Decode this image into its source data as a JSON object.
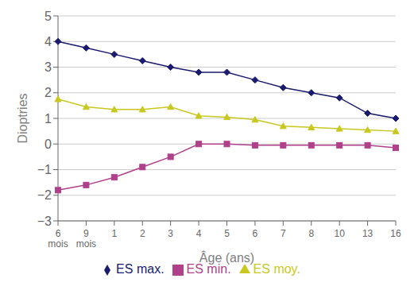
{
  "chart_data": {
    "type": "line",
    "x_label": "Âge (ans)",
    "y_label": "Dioptries",
    "categories": [
      "6\nmois",
      "9\nmois",
      "1",
      "2",
      "3",
      "4",
      "5",
      "6",
      "7",
      "8",
      "10",
      "13",
      "16"
    ],
    "series": [
      {
        "name": "ES max.",
        "color": "#1a1a6e",
        "marker": "diamond",
        "values": [
          4.0,
          3.75,
          3.5,
          3.25,
          3.0,
          2.8,
          2.8,
          2.5,
          2.2,
          2.0,
          1.8,
          1.2,
          1.0
        ]
      },
      {
        "name": "ES min.",
        "color": "#b0408a",
        "marker": "square",
        "values": [
          -1.8,
          -1.6,
          -1.3,
          -0.9,
          -0.5,
          0.0,
          0.0,
          -0.05,
          -0.05,
          -0.05,
          -0.05,
          -0.05,
          -0.15
        ]
      },
      {
        "name": "ES moy.",
        "color": "#c8c820",
        "marker": "triangle",
        "values": [
          1.75,
          1.45,
          1.35,
          1.35,
          1.45,
          1.1,
          1.05,
          0.95,
          0.7,
          0.65,
          0.6,
          0.55,
          0.5
        ]
      }
    ],
    "ylim": [
      -3,
      5
    ],
    "yticks": [
      {
        "value": -3,
        "label": "−3"
      },
      {
        "value": -2,
        "label": "−2"
      },
      {
        "value": -1,
        "label": "−1"
      },
      0,
      1,
      2,
      3,
      4,
      5
    ],
    "grid": true,
    "legend": "bottom"
  }
}
